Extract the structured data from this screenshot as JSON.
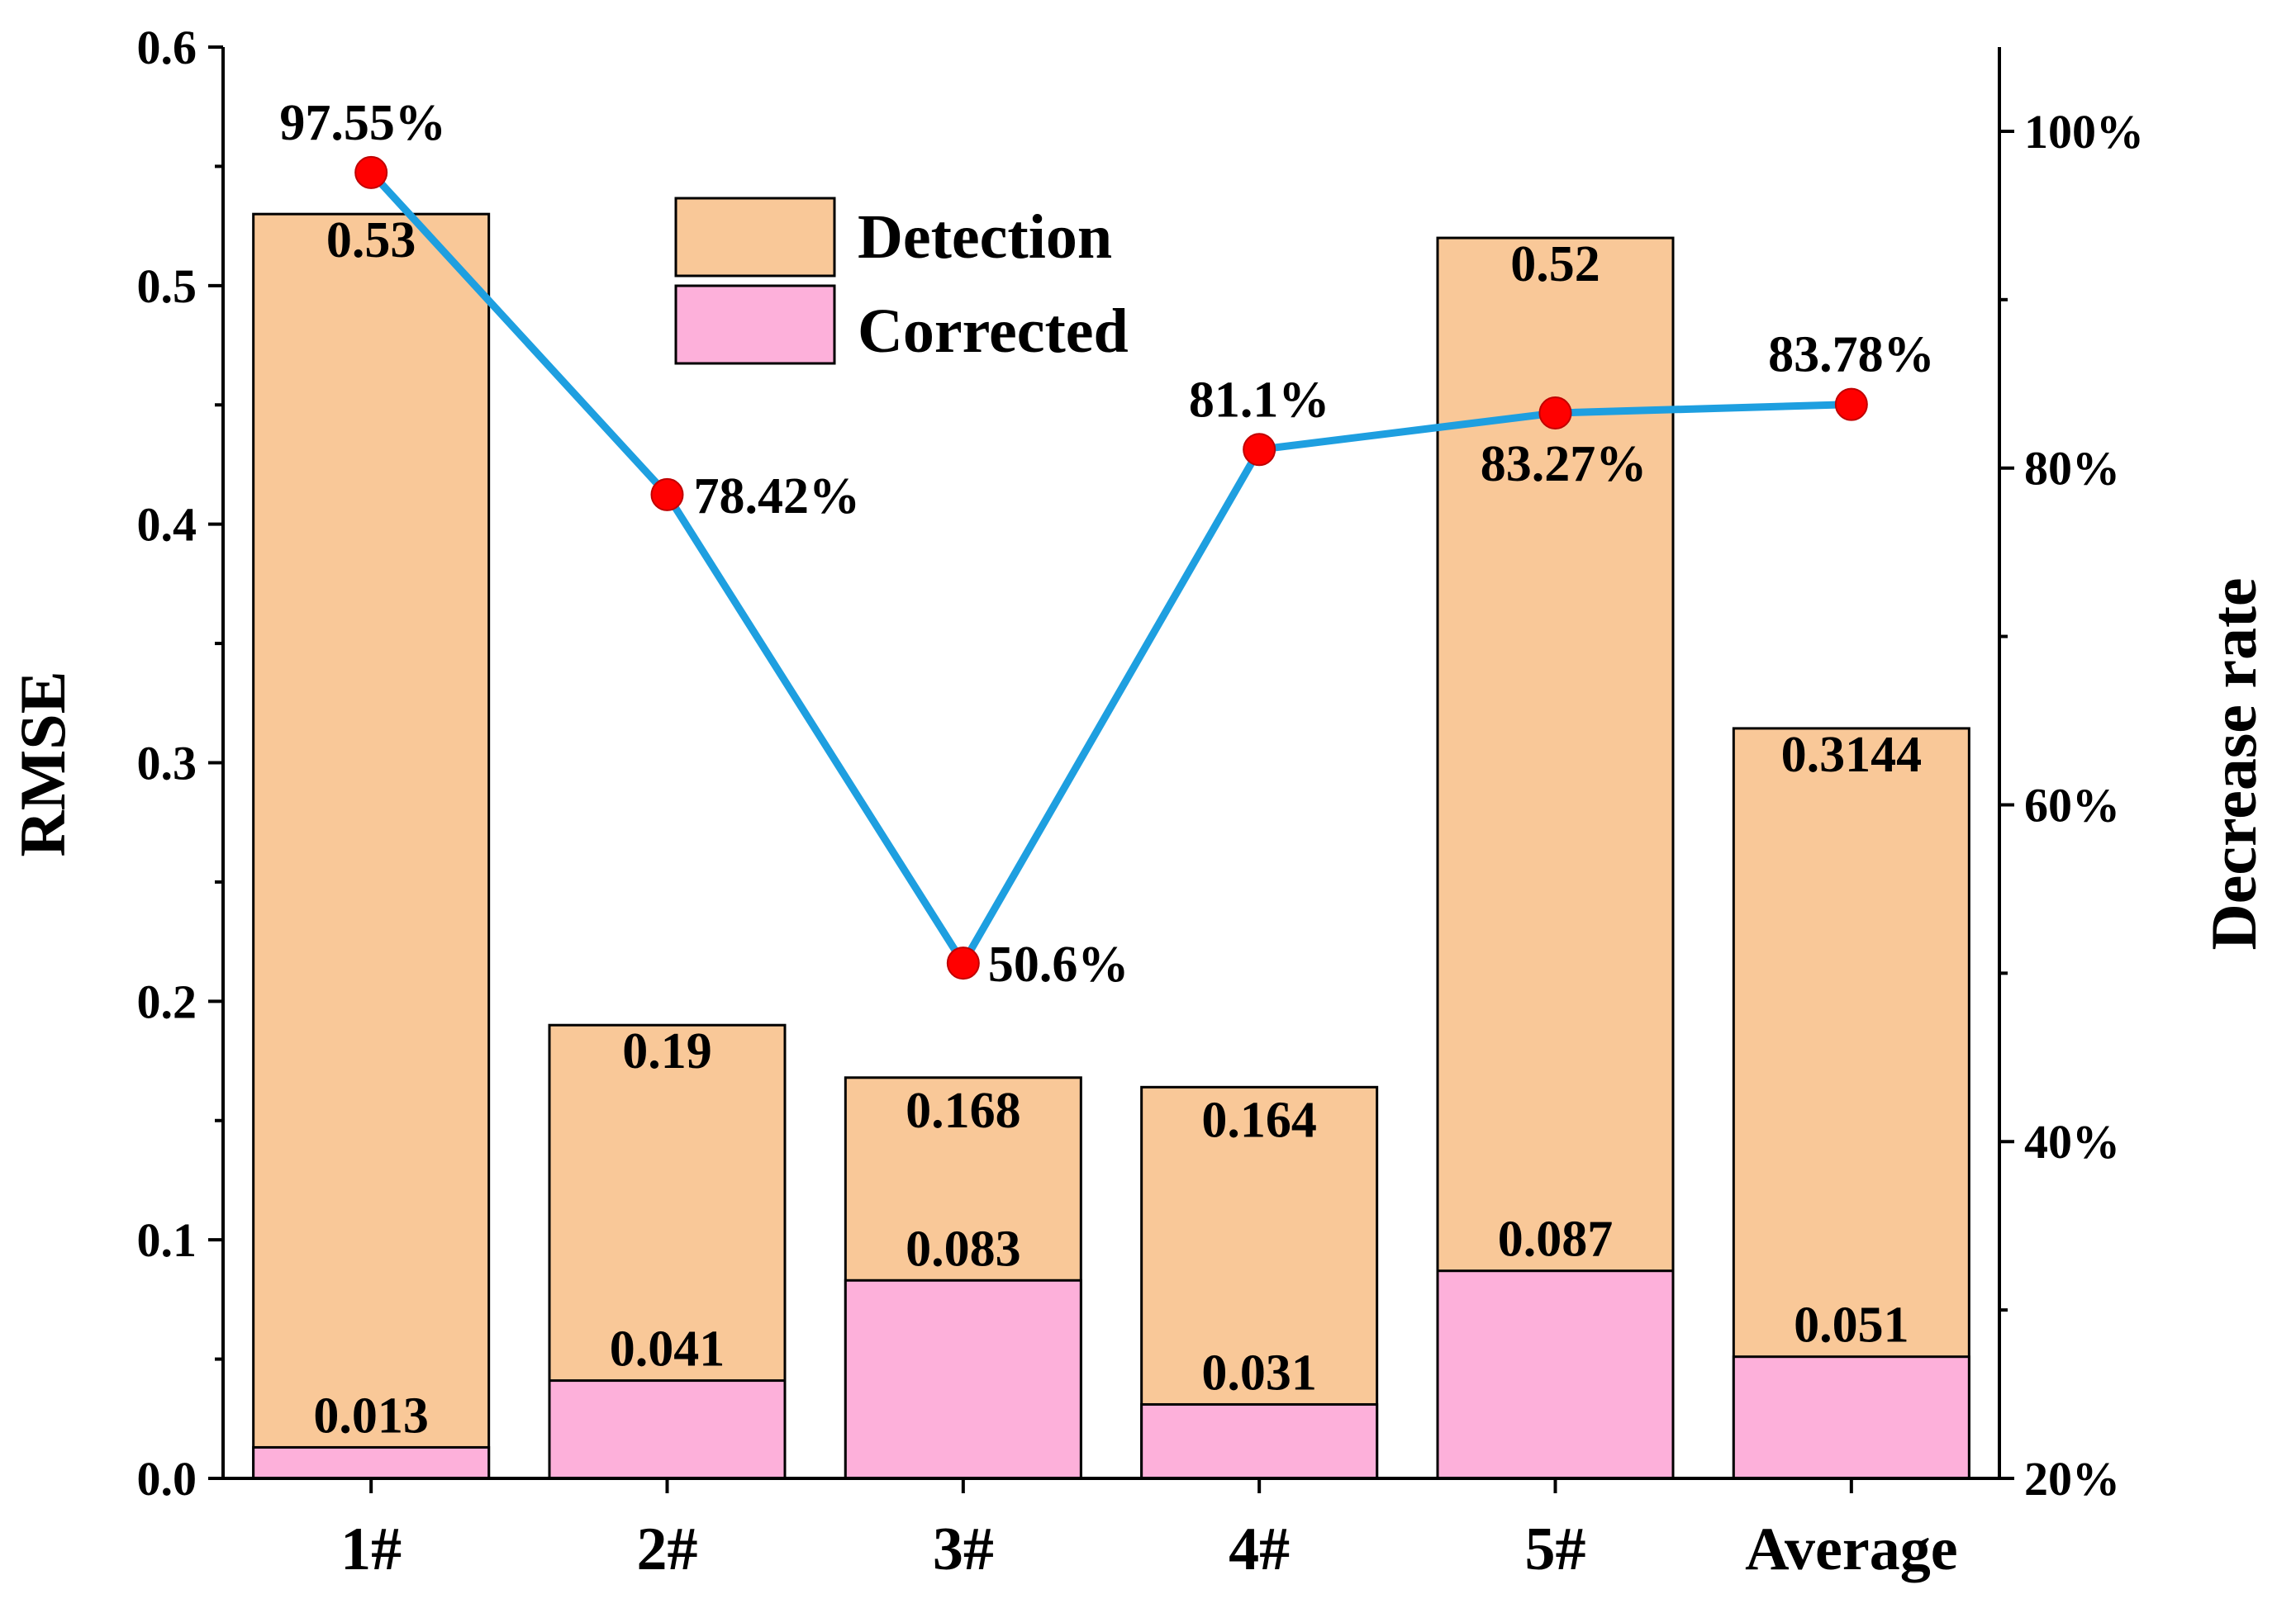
{
  "chart_data": {
    "type": "bar",
    "categories": [
      "1#",
      "2#",
      "3#",
      "4#",
      "5#",
      "Average"
    ],
    "series": [
      {
        "name": "Detection",
        "values": [
          0.53,
          0.19,
          0.168,
          0.164,
          0.52,
          0.3144
        ],
        "labels": [
          "0.53",
          "0.19",
          "0.168",
          "0.164",
          "0.52",
          "0.3144"
        ],
        "color": "#F9C898"
      },
      {
        "name": "Corrected",
        "values": [
          0.013,
          0.041,
          0.083,
          0.031,
          0.087,
          0.051
        ],
        "labels": [
          "0.013",
          "0.041",
          "0.083",
          "0.031",
          "0.087",
          "0.051"
        ],
        "color": "#FDB0DA"
      }
    ],
    "line_series": {
      "name": "Decrease rate",
      "values": [
        97.55,
        78.42,
        50.6,
        81.1,
        83.27,
        83.78
      ],
      "labels": [
        "97.55%",
        "78.42%",
        "50.6%",
        "81.1%",
        "83.27%",
        "83.78%"
      ],
      "line_color": "#1E9FE0",
      "marker_color": "#FF0000"
    },
    "ylabel": "RMSE",
    "ylabel_right": "Decrease rate",
    "ylim": [
      0,
      0.6
    ],
    "yticks": [
      "0.0",
      "0.1",
      "0.2",
      "0.3",
      "0.4",
      "0.5",
      "0.6"
    ],
    "ylim_right": [
      20,
      105
    ],
    "yticks_right": [
      "20%",
      "40%",
      "60%",
      "80%",
      "100%"
    ],
    "legend": [
      "Detection",
      "Corrected"
    ],
    "legend_position": "top-center",
    "grid": false
  }
}
